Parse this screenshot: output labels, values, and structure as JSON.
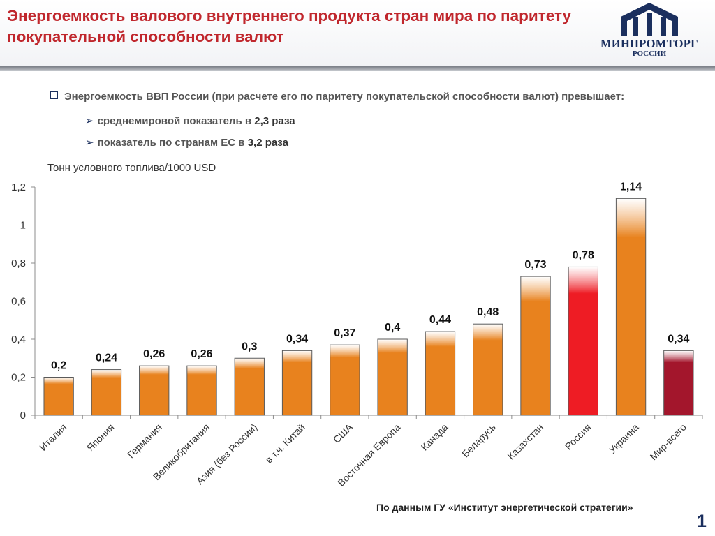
{
  "header": {
    "title": "Энергоемкость валового внутреннего продукта стран мира по паритету покупательной способности валют",
    "logo_text": "МИНПРОМТОРГ",
    "logo_subtext": "РОССИИ"
  },
  "bullets": {
    "main": "Энергоемкость ВВП России (при расчете его по паритету покупательской способности валют) превышает:",
    "items": [
      {
        "text": "среднемировой показатель в ",
        "value": "2,3 раза"
      },
      {
        "text": "показатель по странам ЕС в ",
        "value": "3,2 раза"
      }
    ]
  },
  "colors": {
    "title": "#c0272d",
    "bar_default": "#e8821e",
    "bar_russia": "#ee1c24",
    "bar_world": "#a3162c",
    "brand_blue": "#1b2f5e"
  },
  "chart_data": {
    "type": "bar",
    "ylabel": "Тонн условного топлива/1000 USD",
    "ylim": [
      0,
      1.2
    ],
    "yticks": [
      "0",
      "0,2",
      "0,4",
      "0,6",
      "0,8",
      "1",
      "1,2"
    ],
    "categories": [
      "Италия",
      "Япония",
      "Германия",
      "Великобритания",
      "Азия (без России)",
      "в т.ч. Китай",
      "США",
      "Восточная Европа",
      "Канада",
      "Беларусь",
      "Казахстан",
      "Россия",
      "Украина",
      "Мир-всего"
    ],
    "values": [
      0.2,
      0.24,
      0.26,
      0.26,
      0.3,
      0.34,
      0.37,
      0.4,
      0.44,
      0.48,
      0.73,
      0.78,
      1.14,
      0.34
    ],
    "value_labels": [
      "0,2",
      "0,24",
      "0,26",
      "0,26",
      "0,3",
      "0,34",
      "0,37",
      "0,4",
      "0,44",
      "0,48",
      "0,73",
      "0,78",
      "1,14",
      "0,34"
    ],
    "highlight": {
      "Россия": "#ee1c24",
      "Мир-всего": "#a3162c"
    },
    "grid": false,
    "legend": "none"
  },
  "footer": {
    "source": "По данным ГУ «Институт энергетической стратегии»",
    "page_number": "1"
  }
}
